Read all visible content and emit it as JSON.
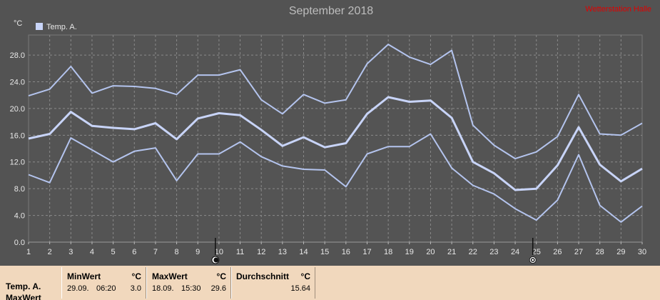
{
  "header": {
    "title": "September 2018",
    "brand": "Wetterstation Halle",
    "unit": "°C",
    "legend_label": "Temp. A."
  },
  "chart_data": {
    "type": "line",
    "title": "September 2018",
    "ylabel": "°C",
    "x": [
      1,
      2,
      3,
      4,
      5,
      6,
      7,
      8,
      9,
      10,
      11,
      12,
      13,
      14,
      15,
      16,
      17,
      18,
      19,
      20,
      21,
      22,
      23,
      24,
      25,
      26,
      27,
      28,
      29,
      30
    ],
    "x_ticks": [
      "1",
      "2",
      "3",
      "4",
      "5",
      "6",
      "7",
      "8",
      "9",
      "10",
      "11",
      "12",
      "13",
      "14",
      "15",
      "16",
      "17",
      "18",
      "19",
      "20",
      "21",
      "22",
      "23",
      "24",
      "25",
      "26",
      "27",
      "28",
      "29",
      "30"
    ],
    "y_ticks": [
      "0.0",
      "4.0",
      "8.0",
      "12.0",
      "16.0",
      "20.0",
      "24.0",
      "28.0"
    ],
    "ylim": [
      0,
      31
    ],
    "grid": true,
    "legend_position": "top-left",
    "series": [
      {
        "name": "Temp. A.",
        "role": "max",
        "color": "#b4c4ee",
        "values": [
          21.9,
          22.9,
          26.3,
          22.3,
          23.4,
          23.3,
          23.0,
          22.1,
          25.0,
          25.0,
          25.8,
          21.3,
          19.2,
          22.1,
          20.8,
          21.3,
          26.7,
          29.6,
          27.7,
          26.6,
          28.7,
          17.5,
          14.5,
          12.5,
          13.5,
          15.8,
          22.1,
          16.2,
          16.0,
          17.8
        ]
      },
      {
        "name": "Temp. A.",
        "role": "mean",
        "color": "#c8d4f8",
        "values": [
          15.5,
          16.2,
          19.5,
          17.4,
          17.1,
          16.9,
          17.8,
          15.4,
          18.5,
          19.3,
          19.0,
          16.8,
          14.4,
          15.7,
          14.2,
          14.8,
          19.2,
          21.7,
          21.0,
          21.2,
          18.6,
          12.0,
          10.3,
          7.8,
          8.0,
          11.5,
          17.2,
          11.6,
          9.1,
          11.0
        ]
      },
      {
        "name": "Temp. A.",
        "role": "min",
        "color": "#b4c4ee",
        "values": [
          10.1,
          8.9,
          15.6,
          13.8,
          12.0,
          13.6,
          14.1,
          9.2,
          13.2,
          13.2,
          15.0,
          12.8,
          11.4,
          10.9,
          10.8,
          8.3,
          13.2,
          14.3,
          14.3,
          16.2,
          11.1,
          8.5,
          7.2,
          5.0,
          3.3,
          6.3,
          13.1,
          5.5,
          3.0,
          5.4
        ]
      }
    ],
    "markers": [
      {
        "day": 10,
        "icon": "new-moon-icon"
      },
      {
        "day": 25,
        "icon": "full-moon-icon"
      }
    ]
  },
  "stats": {
    "row_label": "Temp. A.",
    "row_label_2": "MaxWert",
    "min": {
      "header": "MinWert",
      "unit": "°C",
      "date": "29.09.",
      "time": "06:20",
      "value": "3.0"
    },
    "max": {
      "header": "MaxWert",
      "unit": "°C",
      "date": "18.09.",
      "time": "15:30",
      "value": "29.6"
    },
    "avg": {
      "header": "Durchschnitt",
      "unit": "°C",
      "value": "15.64"
    }
  }
}
